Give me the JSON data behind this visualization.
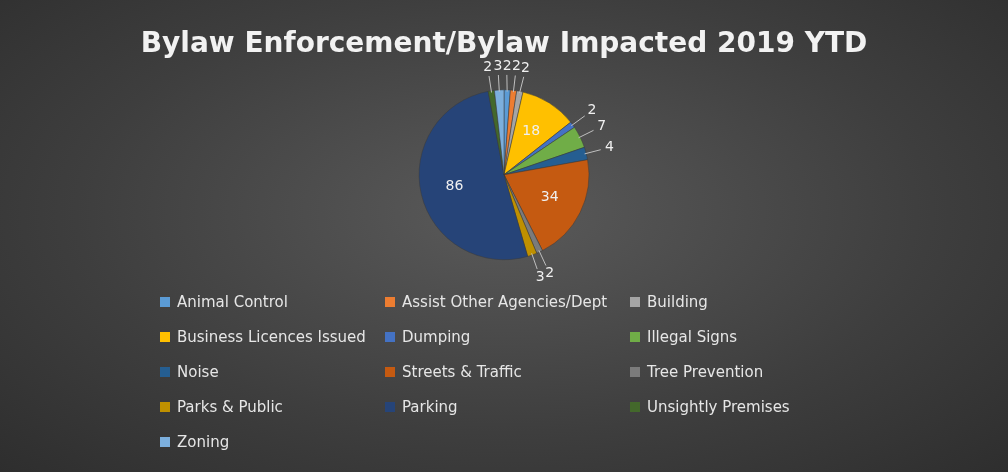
{
  "chart_data": {
    "type": "pie",
    "title": "Bylaw Enforcement/Bylaw Impacted 2019 YTD",
    "categories": [
      "Animal Control",
      "Assist Other Agencies/Dept",
      "Building",
      "Business Licences Issued",
      "Dumping",
      "Illegal Signs",
      "Noise",
      "Streets & Traffic",
      "Tree Prevention",
      "Parks & Public",
      "Parking",
      "Unsightly Premises",
      "Zoning"
    ],
    "values": [
      2,
      2,
      2,
      18,
      2,
      7,
      4,
      34,
      2,
      3,
      86,
      2,
      3
    ],
    "colors": [
      "#5b9bd5",
      "#ed7d31",
      "#a5a5a5",
      "#ffc000",
      "#4472c4",
      "#70ad47",
      "#255e91",
      "#c55a11",
      "#7b7b7b",
      "#bf9000",
      "#264478",
      "#43682b",
      "#7cafdd"
    ],
    "data_labels": true,
    "legend": "bottom"
  }
}
